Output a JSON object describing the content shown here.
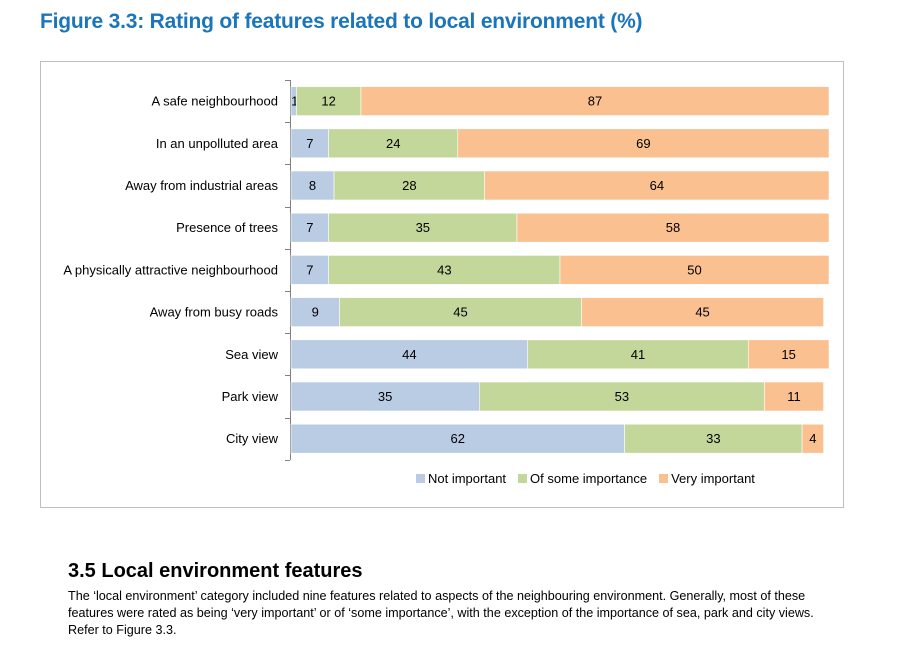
{
  "figure_title": "Figure 3.3: Rating of features related to local environment (%)",
  "colors": {
    "title": "#1b75bb",
    "not_important": "#b9cce4",
    "of_some_importance": "#c4d79b",
    "very_important": "#fac090",
    "axis": "#808080"
  },
  "chart_data": {
    "type": "bar",
    "orientation": "horizontal",
    "stacked": "100%",
    "title": "Figure 3.3: Rating of features related to local environment (%)",
    "xlabel": "",
    "ylabel": "",
    "xlim": [
      0,
      100
    ],
    "grid": false,
    "legend_position": "bottom",
    "categories": [
      "A safe neighbourhood",
      "In an unpolluted area",
      "Away from industrial areas",
      "Presence of trees",
      "A physically attractive neighbourhood",
      "Away from busy roads",
      "Sea view",
      "Park view",
      "City view"
    ],
    "series": [
      {
        "name": "Not important",
        "color": "#b9cce4",
        "values": [
          1,
          7,
          8,
          7,
          7,
          9,
          44,
          35,
          62
        ]
      },
      {
        "name": "Of some importance",
        "color": "#c4d79b",
        "values": [
          12,
          24,
          28,
          35,
          43,
          45,
          41,
          53,
          33
        ]
      },
      {
        "name": "Very important",
        "color": "#fac090",
        "values": [
          87,
          69,
          64,
          58,
          50,
          45,
          15,
          11,
          4
        ]
      }
    ]
  },
  "legend": [
    {
      "label": "Not important",
      "color": "#b9cce4"
    },
    {
      "label": "Of some importance",
      "color": "#c4d79b"
    },
    {
      "label": "Very important",
      "color": "#fac090"
    }
  ],
  "section": {
    "title": "3.5 Local environment features",
    "body": "The ‘local environment’ category included nine features related to aspects of the neighbouring environment. Generally, most of these features were rated as being ‘very important’ or of ‘some importance’, with the exception of the importance of sea, park and city views. Refer to Figure 3.3."
  }
}
